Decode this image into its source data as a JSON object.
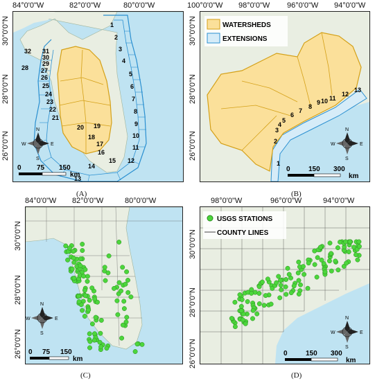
{
  "panels": [
    {
      "id": "A",
      "label": "(A)",
      "lon_ticks": [
        "84°0'0\"W",
        "82°0'0\"W",
        "80°0'0\"W"
      ],
      "lat_ticks": [
        "30°0'0\"N",
        "28°0'0\"N",
        "26°0'0\"N"
      ],
      "extension_numbers": [
        "1",
        "2",
        "3",
        "4",
        "5",
        "6",
        "7",
        "8",
        "9",
        "10",
        "11",
        "12",
        "13",
        "14",
        "15",
        "16",
        "17",
        "18",
        "19",
        "20",
        "21",
        "22",
        "23",
        "24",
        "25",
        "26",
        "27",
        "28",
        "29",
        "30",
        "31",
        "32"
      ],
      "scale": {
        "ticks": [
          "0",
          "75",
          "150"
        ],
        "unit": "km"
      },
      "compass": {
        "n": "N",
        "s": "S",
        "e": "E",
        "w": "W"
      }
    },
    {
      "id": "B",
      "label": "(B)",
      "lon_ticks": [
        "100°0'0\"W",
        "98°0'0\"W",
        "96°0'0\"W",
        "94°0'0\"W"
      ],
      "lat_ticks": [
        "30°0'0\"N",
        "28°0'0\"N",
        "26°0'0\"N"
      ],
      "extension_numbers": [
        "1",
        "2",
        "3",
        "4",
        "5",
        "6",
        "7",
        "8",
        "9",
        "10",
        "11",
        "12",
        "13"
      ],
      "legend": [
        {
          "label": "WATERSHEDS",
          "fill": "#fbe09a",
          "stroke": "#d4a017"
        },
        {
          "label": "EXTENSIONS",
          "fill": "#d6ecf8",
          "stroke": "#2a8fd0"
        }
      ],
      "scale": {
        "ticks": [
          "0",
          "150",
          "300"
        ],
        "unit": "km"
      },
      "compass": {
        "n": "N",
        "s": "S",
        "e": "E",
        "w": "W"
      }
    },
    {
      "id": "C",
      "label": "(C)",
      "lon_ticks": [
        "84°0'0\"W",
        "82°0'0\"W",
        "80°0'0\"W"
      ],
      "lat_ticks": [
        "30°0'0\"N",
        "28°0'0\"N",
        "26°0'0\"N"
      ],
      "scale": {
        "ticks": [
          "0",
          "75",
          "150"
        ],
        "unit": "km"
      },
      "compass": {
        "n": "N",
        "s": "S",
        "e": "E",
        "w": "W"
      }
    },
    {
      "id": "D",
      "label": "(D)",
      "lon_ticks": [
        "98°0'0\"W",
        "96°0'0\"W",
        "94°0'0\"W"
      ],
      "lat_ticks": [
        "30°0'0\"N",
        "28°0'0\"N",
        "26°0'0\"N"
      ],
      "legend": [
        {
          "label": "USGS STATIONS",
          "color": "#4cd63c"
        },
        {
          "label": "COUNTY LINES",
          "color": "#444444"
        }
      ],
      "scale": {
        "ticks": [
          "0",
          "150",
          "300"
        ],
        "unit": "km"
      },
      "compass": {
        "n": "N",
        "s": "S",
        "e": "E",
        "w": "W"
      }
    }
  ],
  "colors": {
    "water": "#bfe3f2",
    "land": "#e9eee2",
    "watershed_fill": "#fbe09a",
    "watershed_stroke": "#d4a017",
    "extension_stroke": "#2a8fd0",
    "station": "#4cd63c"
  }
}
